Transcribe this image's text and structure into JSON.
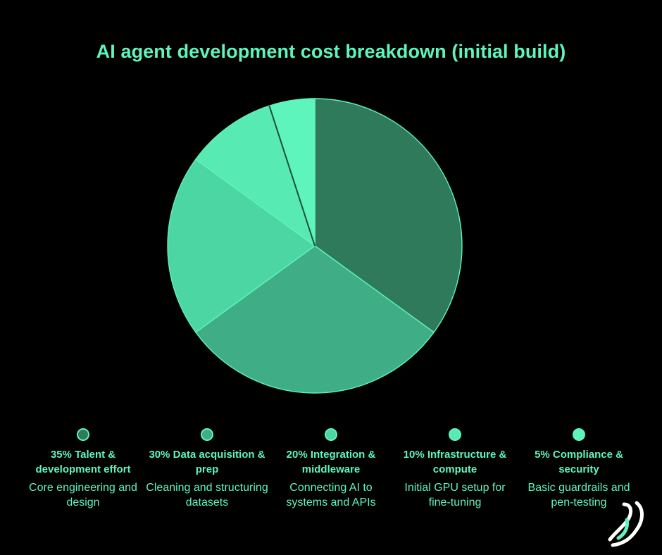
{
  "chart_data": {
    "type": "pie",
    "title": "AI agent development cost breakdown (initial build)",
    "slices": [
      {
        "value": 35,
        "heading": "35% Talent & development effort",
        "description": "Core engineering and design",
        "color": "#2e7a5b"
      },
      {
        "value": 30,
        "heading": "30% Data acquisition & prep",
        "description": "Cleaning and structuring datasets",
        "color": "#3fad86"
      },
      {
        "value": 20,
        "heading": "20% Integration & middleware",
        "description": "Connecting AI to systems and APIs",
        "color": "#4cd6a3"
      },
      {
        "value": 10,
        "heading": "10% Infrastructure & compute",
        "description": "Initial GPU setup for fine-tuning",
        "color": "#57eab2"
      },
      {
        "value": 5,
        "heading": "5% Compliance & security",
        "description": "Basic guardrails and pen-testing",
        "color": "#5ef5bd"
      }
    ],
    "legend_placement": "bottom"
  },
  "brand": {
    "logo_icon": "brand-logo-icon",
    "accent_color": "#5ef5bd"
  }
}
